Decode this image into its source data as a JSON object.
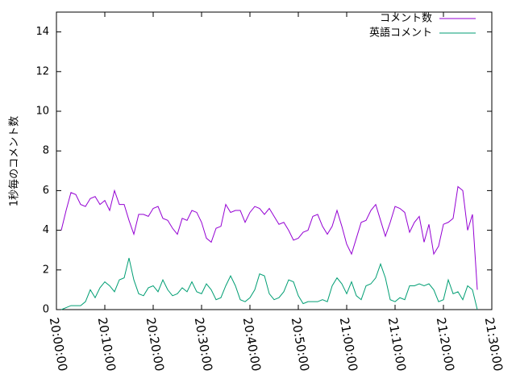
{
  "chart_data": {
    "type": "line",
    "ylabel": "1秒毎のコメント数",
    "x": [
      "20:01:00",
      "20:02:00",
      "20:03:00",
      "20:04:00",
      "20:05:00",
      "20:06:00",
      "20:07:00",
      "20:08:00",
      "20:09:00",
      "20:10:00",
      "20:11:00",
      "20:12:00",
      "20:13:00",
      "20:14:00",
      "20:15:00",
      "20:16:00",
      "20:17:00",
      "20:18:00",
      "20:19:00",
      "20:20:00",
      "20:21:00",
      "20:22:00",
      "20:23:00",
      "20:24:00",
      "20:25:00",
      "20:26:00",
      "20:27:00",
      "20:28:00",
      "20:29:00",
      "20:30:00",
      "20:31:00",
      "20:32:00",
      "20:33:00",
      "20:34:00",
      "20:35:00",
      "20:36:00",
      "20:37:00",
      "20:38:00",
      "20:39:00",
      "20:40:00",
      "20:41:00",
      "20:42:00",
      "20:43:00",
      "20:44:00",
      "20:45:00",
      "20:46:00",
      "20:47:00",
      "20:48:00",
      "20:49:00",
      "20:50:00",
      "20:51:00",
      "20:52:00",
      "20:53:00",
      "20:54:00",
      "20:55:00",
      "20:56:00",
      "20:57:00",
      "20:58:00",
      "20:59:00",
      "21:00:00",
      "21:01:00",
      "21:02:00",
      "21:03:00",
      "21:04:00",
      "21:05:00",
      "21:06:00",
      "21:07:00",
      "21:08:00",
      "21:09:00",
      "21:10:00",
      "21:11:00",
      "21:12:00",
      "21:13:00",
      "21:14:00",
      "21:15:00",
      "21:16:00",
      "21:17:00",
      "21:18:00",
      "21:19:00",
      "21:20:00",
      "21:21:00",
      "21:22:00",
      "21:23:00",
      "21:24:00",
      "21:25:00",
      "21:26:00",
      "21:27:00"
    ],
    "series": [
      {
        "name": "コメント数",
        "color": "#9400d3",
        "values": [
          4.0,
          5.0,
          5.9,
          5.8,
          5.3,
          5.2,
          5.6,
          5.7,
          5.3,
          5.5,
          5.0,
          6.0,
          5.3,
          5.3,
          4.5,
          3.8,
          4.8,
          4.8,
          4.7,
          5.1,
          5.2,
          4.6,
          4.5,
          4.1,
          3.8,
          4.6,
          4.5,
          5.0,
          4.9,
          4.4,
          3.6,
          3.4,
          4.1,
          4.2,
          5.3,
          4.9,
          5.0,
          5.0,
          4.4,
          4.9,
          5.2,
          5.1,
          4.8,
          5.1,
          4.7,
          4.3,
          4.4,
          4.0,
          3.5,
          3.6,
          3.9,
          4.0,
          4.7,
          4.8,
          4.2,
          3.8,
          4.2,
          5.0,
          4.2,
          3.3,
          2.8,
          3.6,
          4.4,
          4.5,
          5.0,
          5.3,
          4.5,
          3.7,
          4.4,
          5.2,
          5.1,
          4.9,
          3.9,
          4.4,
          4.7,
          3.4,
          4.3,
          2.8,
          3.2,
          4.3,
          4.4,
          4.6,
          6.2,
          6.0,
          4.0,
          4.8,
          1.0
        ]
      },
      {
        "name": "英語コメント",
        "color": "#009e73",
        "values": [
          0.0,
          0.1,
          0.2,
          0.2,
          0.2,
          0.4,
          1.0,
          0.6,
          1.1,
          1.4,
          1.2,
          0.9,
          1.5,
          1.6,
          2.6,
          1.5,
          0.8,
          0.7,
          1.1,
          1.2,
          0.9,
          1.5,
          1.0,
          0.7,
          0.8,
          1.1,
          0.9,
          1.4,
          0.9,
          0.8,
          1.3,
          1.0,
          0.5,
          0.6,
          1.2,
          1.7,
          1.2,
          0.5,
          0.4,
          0.6,
          1.0,
          1.8,
          1.7,
          0.8,
          0.5,
          0.6,
          0.9,
          1.5,
          1.4,
          0.7,
          0.3,
          0.4,
          0.4,
          0.4,
          0.5,
          0.4,
          1.2,
          1.6,
          1.3,
          0.8,
          1.4,
          0.7,
          0.5,
          1.2,
          1.3,
          1.6,
          2.3,
          1.6,
          0.5,
          0.4,
          0.6,
          0.5,
          1.2,
          1.2,
          1.3,
          1.2,
          1.3,
          1.0,
          0.4,
          0.5,
          1.5,
          0.8,
          0.9,
          0.5,
          1.2,
          1.0,
          0.0
        ]
      }
    ],
    "xlim": [
      "20:00:00",
      "21:30:00"
    ],
    "xticks": [
      "20:00:00",
      "20:10:00",
      "20:20:00",
      "20:30:00",
      "20:40:00",
      "20:50:00",
      "21:00:00",
      "21:10:00",
      "21:20:00",
      "21:30:00"
    ],
    "ylim": [
      0,
      15
    ],
    "yticks": [
      0,
      2,
      4,
      6,
      8,
      10,
      12,
      14
    ],
    "grid": false,
    "legend": "top-right"
  }
}
